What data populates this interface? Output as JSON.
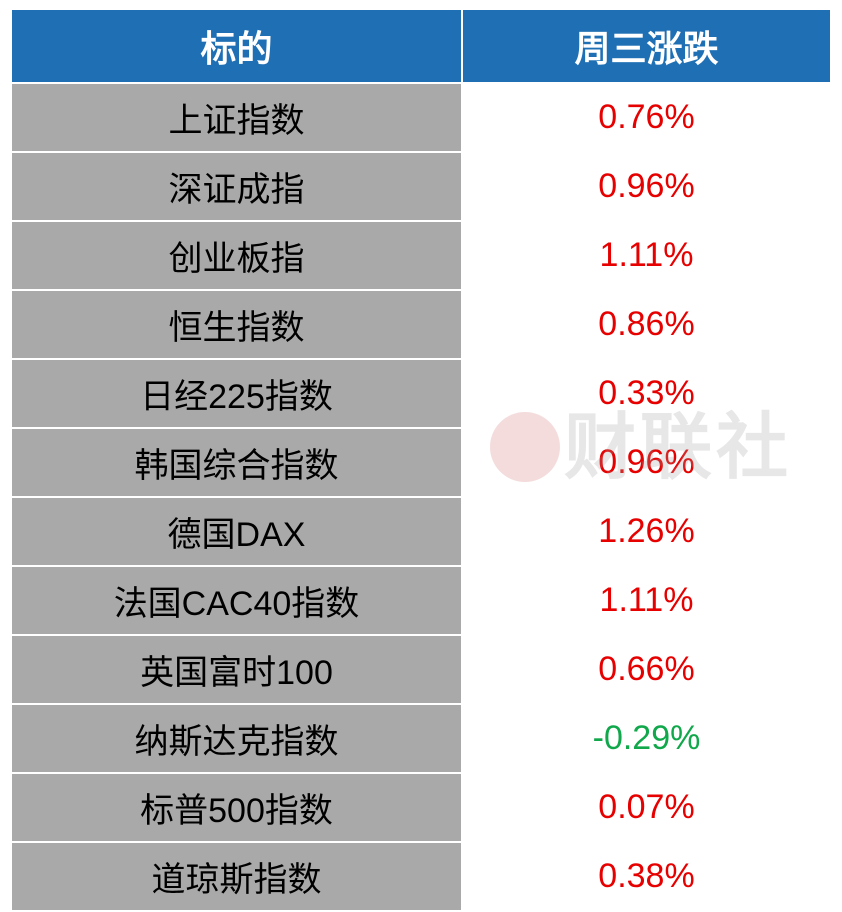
{
  "table": {
    "type": "table",
    "columns": [
      "标的",
      "周三涨跌"
    ],
    "column_widths": [
      "55%",
      "45%"
    ],
    "header_bg": "#1f6fb5",
    "header_color": "#ffffff",
    "header_fontsize": 36,
    "name_bg": "#a9a9a9",
    "name_color": "#000000",
    "value_bg": "#ffffff",
    "up_color": "#e60000",
    "down_color": "#11a84b",
    "cell_fontsize": 34,
    "border_color": "#ffffff",
    "border_width": 2,
    "rows": [
      {
        "name": "上证指数",
        "value": "0.76%",
        "direction": "up"
      },
      {
        "name": "深证成指",
        "value": "0.96%",
        "direction": "up"
      },
      {
        "name": "创业板指",
        "value": "1.11%",
        "direction": "up"
      },
      {
        "name": "恒生指数",
        "value": "0.86%",
        "direction": "up"
      },
      {
        "name": "日经225指数",
        "value": "0.33%",
        "direction": "up"
      },
      {
        "name": "韩国综合指数",
        "value": "0.96%",
        "direction": "up"
      },
      {
        "name": "德国DAX",
        "value": "1.26%",
        "direction": "up"
      },
      {
        "name": "法国CAC40指数",
        "value": "1.11%",
        "direction": "up"
      },
      {
        "name": "英国富时100",
        "value": "0.66%",
        "direction": "up"
      },
      {
        "name": "纳斯达克指数",
        "value": "-0.29%",
        "direction": "down"
      },
      {
        "name": "标普500指数",
        "value": "0.07%",
        "direction": "up"
      },
      {
        "name": "道琼斯指数",
        "value": "0.38%",
        "direction": "up"
      }
    ]
  },
  "watermark": {
    "text": "财联社",
    "color": "rgba(160,160,160,0.25)",
    "fontsize": 72
  }
}
